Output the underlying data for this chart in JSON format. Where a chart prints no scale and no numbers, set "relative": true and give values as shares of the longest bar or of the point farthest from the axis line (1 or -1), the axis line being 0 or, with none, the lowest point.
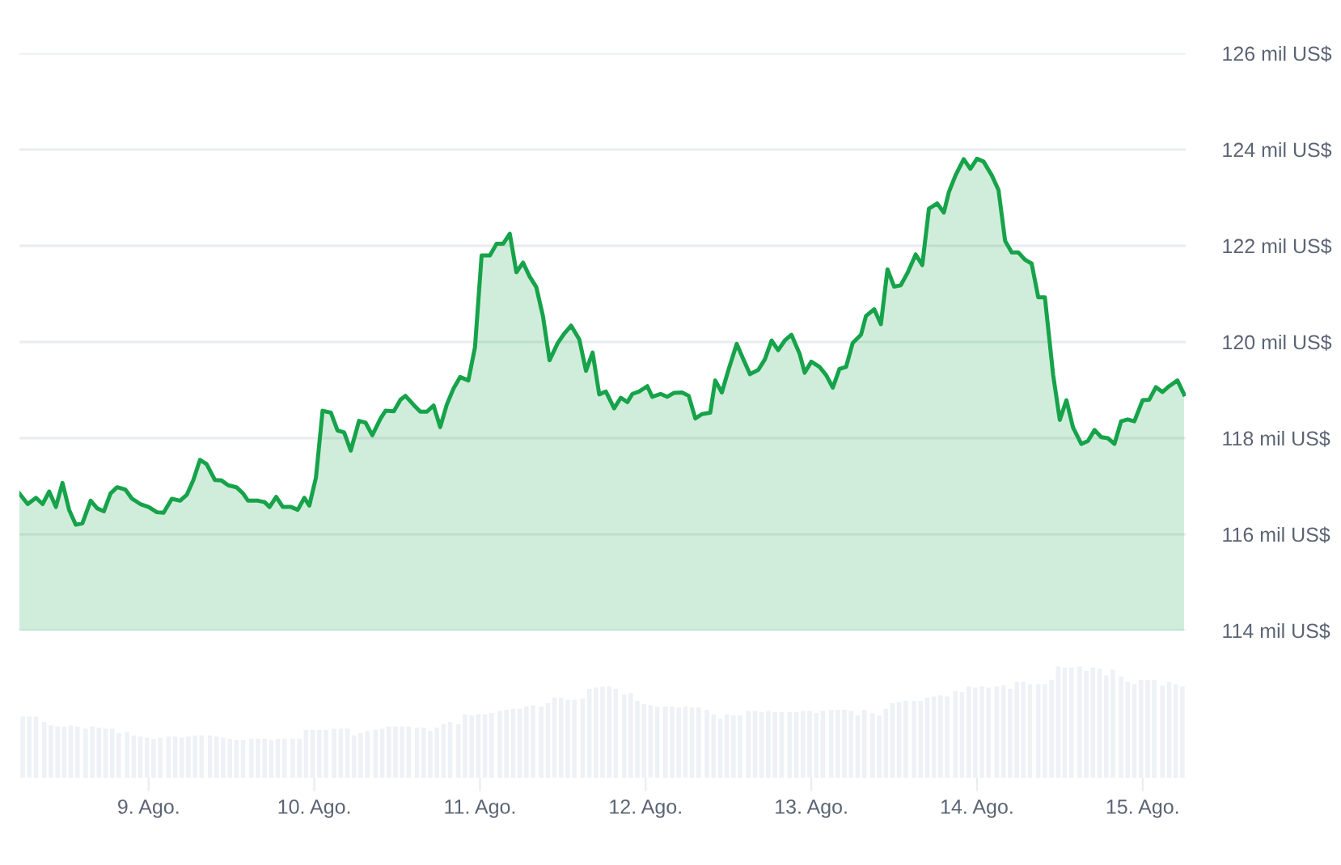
{
  "chart_data": [
    {
      "type": "area",
      "color": "#16a34a",
      "grid": "y",
      "tick_labels": "y",
      "xlim": [
        8.22,
        15.26
      ],
      "ylim": [
        114,
        126
      ],
      "yticks": [
        {
          "value": 114,
          "label": "114 mil US$"
        },
        {
          "value": 116,
          "label": "116 mil US$"
        },
        {
          "value": 118,
          "label": "118 mil US$"
        },
        {
          "value": 120,
          "label": "120 mil US$"
        },
        {
          "value": 122,
          "label": "122 mil US$"
        },
        {
          "value": 124,
          "label": "124 mil US$"
        },
        {
          "value": 126,
          "label": "126 mil US$"
        }
      ],
      "x": [
        8.22,
        8.27,
        8.32,
        8.36,
        8.4,
        8.44,
        8.48,
        8.52,
        8.56,
        8.6,
        8.65,
        8.69,
        8.73,
        8.77,
        8.81,
        8.86,
        8.9,
        8.95,
        9.0,
        9.05,
        9.09,
        9.14,
        9.19,
        9.23,
        9.27,
        9.31,
        9.35,
        9.4,
        9.44,
        9.48,
        9.53,
        9.57,
        9.6,
        9.66,
        9.7,
        9.73,
        9.77,
        9.81,
        9.86,
        9.9,
        9.94,
        9.97,
        10.01,
        10.05,
        10.1,
        10.14,
        10.18,
        10.22,
        10.27,
        10.31,
        10.35,
        10.4,
        10.43,
        10.48,
        10.52,
        10.55,
        10.6,
        10.64,
        10.68,
        10.72,
        10.76,
        10.8,
        10.84,
        10.88,
        10.93,
        10.97,
        11.01,
        11.06,
        11.1,
        11.14,
        11.18,
        11.22,
        11.26,
        11.3,
        11.34,
        11.38,
        11.42,
        11.47,
        11.51,
        11.55,
        11.6,
        11.64,
        11.68,
        11.72,
        11.76,
        11.81,
        11.85,
        11.89,
        11.92,
        11.96,
        12.01,
        12.04,
        12.09,
        12.13,
        12.17,
        12.22,
        12.26,
        12.3,
        12.34,
        12.39,
        12.42,
        12.46,
        12.5,
        12.55,
        12.59,
        12.63,
        12.68,
        12.72,
        12.76,
        12.8,
        12.84,
        12.88,
        12.93,
        12.96,
        13.0,
        13.05,
        13.09,
        13.13,
        13.17,
        13.21,
        13.25,
        13.3,
        13.33,
        13.38,
        13.42,
        13.46,
        13.5,
        13.54,
        13.58,
        13.63,
        13.67,
        13.71,
        13.76,
        13.8,
        13.83,
        13.87,
        13.92,
        13.96,
        14.0,
        14.04,
        14.09,
        14.13,
        14.17,
        14.21,
        14.25,
        14.29,
        14.33,
        14.37,
        14.41,
        14.46,
        14.5,
        14.54,
        14.58,
        14.63,
        14.67,
        14.71,
        14.75,
        14.79,
        14.83,
        14.87,
        14.91,
        14.95,
        15.0,
        15.04,
        15.08,
        15.12,
        15.16,
        15.21,
        15.25
      ],
      "values": [
        116.85,
        116.63,
        116.76,
        116.63,
        116.89,
        116.57,
        117.07,
        116.51,
        116.2,
        116.23,
        116.7,
        116.54,
        116.48,
        116.85,
        116.98,
        116.93,
        116.74,
        116.63,
        116.57,
        116.46,
        116.45,
        116.74,
        116.7,
        116.82,
        117.13,
        117.55,
        117.46,
        117.13,
        117.12,
        117.02,
        116.98,
        116.85,
        116.7,
        116.7,
        116.67,
        116.57,
        116.78,
        116.57,
        116.57,
        116.51,
        116.76,
        116.6,
        117.18,
        118.57,
        118.53,
        118.16,
        118.12,
        117.74,
        118.36,
        118.32,
        118.06,
        118.41,
        118.57,
        118.56,
        118.8,
        118.88,
        118.69,
        118.55,
        118.55,
        118.68,
        118.23,
        118.7,
        119.03,
        119.27,
        119.2,
        119.89,
        121.8,
        121.8,
        122.04,
        122.04,
        122.25,
        121.45,
        121.65,
        121.36,
        121.14,
        120.54,
        119.62,
        119.98,
        120.18,
        120.34,
        120.05,
        119.4,
        119.78,
        118.91,
        118.97,
        118.62,
        118.84,
        118.75,
        118.92,
        118.97,
        119.08,
        118.86,
        118.92,
        118.86,
        118.94,
        118.95,
        118.88,
        118.41,
        118.5,
        118.53,
        119.2,
        118.95,
        119.42,
        119.96,
        119.64,
        119.33,
        119.42,
        119.64,
        120.03,
        119.83,
        120.03,
        120.15,
        119.75,
        119.36,
        119.59,
        119.48,
        119.31,
        119.05,
        119.44,
        119.48,
        119.98,
        120.15,
        120.54,
        120.68,
        120.37,
        121.51,
        121.15,
        121.18,
        121.43,
        121.82,
        121.6,
        122.77,
        122.88,
        122.69,
        123.11,
        123.46,
        123.8,
        123.6,
        123.81,
        123.75,
        123.46,
        123.16,
        122.1,
        121.86,
        121.86,
        121.71,
        121.63,
        120.93,
        120.93,
        119.31,
        118.38,
        118.79,
        118.22,
        117.88,
        117.94,
        118.17,
        118.02,
        118.0,
        117.88,
        118.35,
        118.39,
        118.35,
        118.79,
        118.8,
        119.06,
        118.96,
        119.08,
        119.2,
        118.91
      ]
    },
    {
      "type": "bar",
      "relative": true,
      "color": "#eef1f5",
      "tick_labels": "x",
      "xlim": [
        8.22,
        15.26
      ],
      "xticks": [
        {
          "value": 9,
          "label": "9. Ago."
        },
        {
          "value": 10,
          "label": "10. Ago."
        },
        {
          "value": 11,
          "label": "11. Ago."
        },
        {
          "value": 12,
          "label": "12. Ago."
        },
        {
          "value": 13,
          "label": "13. Ago."
        },
        {
          "value": 14,
          "label": "14. Ago."
        },
        {
          "value": 15,
          "label": "15. Ago."
        }
      ],
      "x": [
        8.24,
        8.28,
        8.32,
        8.37,
        8.41,
        8.45,
        8.49,
        8.53,
        8.57,
        8.62,
        8.66,
        8.7,
        8.74,
        8.78,
        8.82,
        8.87,
        8.91,
        8.95,
        8.99,
        9.03,
        9.07,
        9.12,
        9.16,
        9.2,
        9.24,
        9.28,
        9.32,
        9.37,
        9.41,
        9.45,
        9.49,
        9.53,
        9.57,
        9.62,
        9.66,
        9.7,
        9.74,
        9.78,
        9.82,
        9.87,
        9.91,
        9.95,
        9.99,
        10.03,
        10.07,
        10.12,
        10.16,
        10.2,
        10.24,
        10.28,
        10.32,
        10.37,
        10.41,
        10.45,
        10.49,
        10.53,
        10.57,
        10.62,
        10.66,
        10.7,
        10.74,
        10.78,
        10.82,
        10.87,
        10.91,
        10.95,
        10.99,
        11.03,
        11.07,
        11.12,
        11.16,
        11.2,
        11.24,
        11.28,
        11.32,
        11.37,
        11.41,
        11.45,
        11.49,
        11.53,
        11.57,
        11.62,
        11.66,
        11.7,
        11.74,
        11.78,
        11.82,
        11.87,
        11.91,
        11.95,
        11.99,
        12.03,
        12.07,
        12.12,
        12.16,
        12.2,
        12.24,
        12.28,
        12.32,
        12.37,
        12.41,
        12.45,
        12.49,
        12.53,
        12.57,
        12.62,
        12.66,
        12.7,
        12.74,
        12.78,
        12.82,
        12.87,
        12.91,
        12.95,
        12.99,
        13.03,
        13.07,
        13.12,
        13.16,
        13.2,
        13.24,
        13.28,
        13.32,
        13.37,
        13.41,
        13.45,
        13.49,
        13.53,
        13.57,
        13.62,
        13.66,
        13.7,
        13.74,
        13.78,
        13.82,
        13.87,
        13.91,
        13.95,
        13.99,
        14.03,
        14.07,
        14.12,
        14.16,
        14.2,
        14.24,
        14.28,
        14.32,
        14.37,
        14.41,
        14.45,
        14.49,
        14.53,
        14.57,
        14.62,
        14.66,
        14.7,
        14.74,
        14.78,
        14.82,
        14.87,
        14.91,
        14.95,
        14.99,
        15.03,
        15.07,
        15.12,
        15.16,
        15.2,
        15.24
      ],
      "values": [
        0.55,
        0.55,
        0.55,
        0.5,
        0.47,
        0.46,
        0.46,
        0.47,
        0.46,
        0.44,
        0.46,
        0.45,
        0.44,
        0.44,
        0.4,
        0.41,
        0.38,
        0.37,
        0.36,
        0.35,
        0.36,
        0.37,
        0.37,
        0.36,
        0.37,
        0.38,
        0.38,
        0.38,
        0.37,
        0.36,
        0.35,
        0.34,
        0.34,
        0.35,
        0.35,
        0.35,
        0.34,
        0.35,
        0.35,
        0.35,
        0.35,
        0.43,
        0.43,
        0.43,
        0.43,
        0.44,
        0.44,
        0.44,
        0.38,
        0.4,
        0.42,
        0.43,
        0.44,
        0.46,
        0.46,
        0.46,
        0.46,
        0.45,
        0.45,
        0.42,
        0.45,
        0.48,
        0.5,
        0.48,
        0.57,
        0.56,
        0.57,
        0.57,
        0.58,
        0.6,
        0.61,
        0.62,
        0.62,
        0.64,
        0.65,
        0.64,
        0.67,
        0.72,
        0.72,
        0.7,
        0.7,
        0.71,
        0.8,
        0.81,
        0.82,
        0.82,
        0.8,
        0.75,
        0.76,
        0.69,
        0.66,
        0.65,
        0.64,
        0.64,
        0.64,
        0.63,
        0.64,
        0.63,
        0.63,
        0.61,
        0.57,
        0.53,
        0.57,
        0.56,
        0.56,
        0.6,
        0.6,
        0.59,
        0.6,
        0.59,
        0.59,
        0.59,
        0.59,
        0.6,
        0.6,
        0.58,
        0.6,
        0.61,
        0.61,
        0.61,
        0.6,
        0.56,
        0.61,
        0.58,
        0.56,
        0.62,
        0.67,
        0.68,
        0.69,
        0.69,
        0.69,
        0.72,
        0.73,
        0.74,
        0.73,
        0.78,
        0.77,
        0.82,
        0.81,
        0.82,
        0.81,
        0.82,
        0.83,
        0.8,
        0.86,
        0.86,
        0.84,
        0.84,
        0.84,
        0.88,
        1.0,
        0.99,
        0.99,
        1.0,
        0.96,
        0.99,
        0.98,
        0.92,
        0.97,
        0.91,
        0.86,
        0.84,
        0.88,
        0.88,
        0.88,
        0.83,
        0.86,
        0.84,
        0.82
      ]
    }
  ]
}
